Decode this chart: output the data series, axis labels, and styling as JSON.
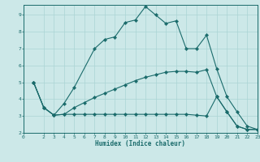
{
  "xlabel": "Humidex (Indice chaleur)",
  "bg_color": "#cce8e8",
  "line_color": "#1a6b6b",
  "grid_color": "#aad4d4",
  "xlim": [
    0,
    23
  ],
  "ylim": [
    2,
    9.6
  ],
  "xticks": [
    0,
    2,
    3,
    4,
    5,
    6,
    7,
    8,
    9,
    10,
    11,
    12,
    13,
    14,
    15,
    16,
    17,
    18,
    19,
    20,
    21,
    22,
    23
  ],
  "yticks": [
    2,
    3,
    4,
    5,
    6,
    7,
    8,
    9
  ],
  "line1": {
    "x": [
      1,
      2,
      3,
      4,
      5,
      7,
      8,
      9,
      10,
      11,
      12,
      13,
      14,
      15,
      16,
      17,
      18,
      19,
      20,
      21,
      22,
      23
    ],
    "y": [
      5.0,
      3.5,
      3.05,
      3.75,
      4.7,
      7.0,
      7.55,
      7.7,
      8.55,
      8.7,
      9.5,
      9.0,
      8.5,
      8.65,
      7.0,
      7.0,
      7.8,
      5.8,
      4.15,
      3.25,
      2.4,
      2.2
    ]
  },
  "line2": {
    "x": [
      1,
      2,
      3,
      4,
      5,
      6,
      7,
      8,
      9,
      10,
      11,
      12,
      13,
      14,
      15,
      16,
      17,
      18,
      19,
      20,
      21,
      22,
      23
    ],
    "y": [
      5.0,
      3.5,
      3.05,
      3.1,
      3.5,
      3.8,
      4.1,
      4.35,
      4.6,
      4.85,
      5.1,
      5.3,
      5.45,
      5.6,
      5.65,
      5.65,
      5.6,
      5.75,
      4.15,
      3.25,
      2.4,
      2.2,
      2.2
    ]
  },
  "line3": {
    "x": [
      1,
      2,
      3,
      4,
      5,
      6,
      7,
      8,
      9,
      10,
      11,
      12,
      13,
      14,
      15,
      16,
      17,
      18,
      19,
      20,
      21,
      22,
      23
    ],
    "y": [
      5.0,
      3.5,
      3.05,
      3.1,
      3.1,
      3.1,
      3.1,
      3.1,
      3.1,
      3.1,
      3.1,
      3.1,
      3.1,
      3.1,
      3.1,
      3.1,
      3.05,
      3.0,
      4.15,
      3.25,
      2.4,
      2.2,
      2.2
    ]
  }
}
